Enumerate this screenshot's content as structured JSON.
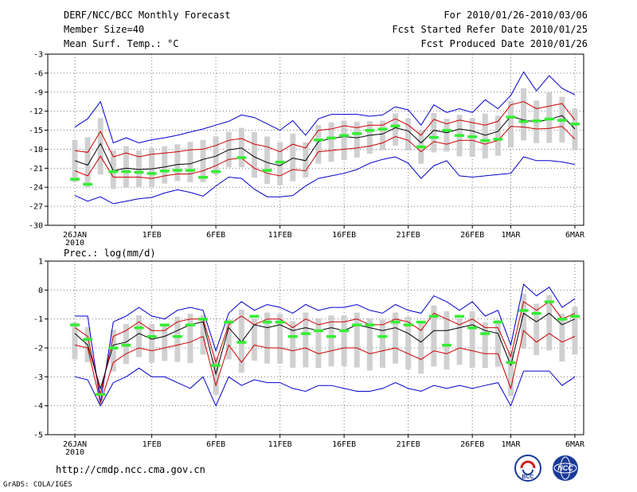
{
  "header": {
    "title": "DERF/NCC/BCC Monthly Forecast",
    "member_size": "Member Size=40",
    "variable": "Mean Surf. Temp.: °C",
    "period": "For 2010/01/26-2010/03/06",
    "fcst_started": "Fcst Started Refer Date 2010/01/25",
    "fcst_produced": "Fcst Produced Date 2010/01/26"
  },
  "footer": {
    "url": "http://cmdp.ncc.cma.gov.cn",
    "grads": "GrADS: COLA/IGES",
    "logo_left_text": "BCC",
    "logo_right_text": "NCC"
  },
  "colors": {
    "ensemble_range": "#0000cc",
    "spread": "#cc0000",
    "mean": "#000000",
    "observed": "#33ee33",
    "box": "#d0d0d0"
  },
  "chart_data": [
    {
      "type": "line",
      "title": "Mean Surf. Temp.: °C",
      "x_ticks": [
        {
          "day": 0,
          "label": "26JAN"
        },
        {
          "day": 6,
          "label": "1FEB"
        },
        {
          "day": 11,
          "label": "6FEB"
        },
        {
          "day": 16,
          "label": "11FEB"
        },
        {
          "day": 21,
          "label": "16FEB"
        },
        {
          "day": 26,
          "label": "21FEB"
        },
        {
          "day": 31,
          "label": "26FEB"
        },
        {
          "day": 34,
          "label": "1MAR"
        },
        {
          "day": 39,
          "label": "6MAR"
        }
      ],
      "x_sublabel": "2010",
      "ylim": [
        -30,
        -3
      ],
      "yticks": [
        -3,
        -6,
        -9,
        -12,
        -15,
        -18,
        -21,
        -24,
        -27,
        -30
      ],
      "series": {
        "max": [
          -14.5,
          -13.2,
          -10.5,
          -17,
          -16.2,
          -17,
          -16.5,
          -16.2,
          -15.8,
          -15.3,
          -14.8,
          -14.2,
          -13.6,
          -12.6,
          -13,
          -14,
          -15,
          -13.5,
          -15.8,
          -13.2,
          -12.5,
          -12.5,
          -12.5,
          -12.8,
          -12.6,
          -11.3,
          -11.8,
          -14.2,
          -11,
          -12.2,
          -11.6,
          -12.2,
          -10.2,
          -11.6,
          -9.5,
          -5.8,
          -8.8,
          -6.4,
          -8.4,
          -9.4
        ],
        "upper": [
          -18.2,
          -18.5,
          -15.2,
          -19.2,
          -18.6,
          -19.2,
          -18.8,
          -18.6,
          -18.4,
          -18.1,
          -18.0,
          -17.4,
          -16.6,
          -16.3,
          -17.2,
          -17.6,
          -18.4,
          -17.2,
          -17.8,
          -15.0,
          -14.8,
          -14.3,
          -14.6,
          -14.2,
          -14.2,
          -13.2,
          -14.2,
          -15.8,
          -13.3,
          -14.0,
          -13.4,
          -13.8,
          -14.2,
          -13.6,
          -11.0,
          -10.5,
          -11.6,
          -11.2,
          -10.8,
          -13.4
        ],
        "mean": [
          -19.8,
          -20.5,
          -17.1,
          -21.4,
          -21.0,
          -21.2,
          -21.1,
          -20.8,
          -20.4,
          -20.3,
          -19.6,
          -19.1,
          -18.1,
          -17.8,
          -19.2,
          -20.1,
          -20.6,
          -19.4,
          -19.8,
          -16.8,
          -16.3,
          -16.0,
          -16.2,
          -15.8,
          -15.6,
          -14.6,
          -15.1,
          -17.0,
          -15.0,
          -15.4,
          -14.8,
          -15.1,
          -15.8,
          -15.2,
          -12.8,
          -13.4,
          -13.7,
          -13.3,
          -12.7,
          -14.8
        ],
        "lower": [
          -21.4,
          -22.2,
          -19.1,
          -22.4,
          -22.4,
          -22.4,
          -22.6,
          -22.2,
          -21.9,
          -21.9,
          -21.4,
          -20.6,
          -19.6,
          -19.4,
          -21.0,
          -21.8,
          -22.2,
          -21.2,
          -21.4,
          -18.4,
          -18.2,
          -18.0,
          -17.8,
          -17.5,
          -17.0,
          -16.0,
          -16.6,
          -18.4,
          -16.8,
          -17.2,
          -16.6,
          -16.6,
          -17.2,
          -16.6,
          -14.4,
          -14.5,
          -14.8,
          -14.7,
          -14.4,
          -16.4
        ],
        "min": [
          -25.3,
          -26.2,
          -25.5,
          -26.6,
          -26.2,
          -25.8,
          -25.6,
          -24.9,
          -24.4,
          -24.8,
          -25.4,
          -23.8,
          -22.4,
          -22.6,
          -24.3,
          -25.5,
          -25.5,
          -25.3,
          -23.8,
          -22.6,
          -22.2,
          -21.8,
          -21.2,
          -20.2,
          -19.6,
          -19.2,
          -20.2,
          -22.6,
          -20.6,
          -19.8,
          -22.2,
          -22.4,
          -22.2,
          -22.0,
          -21.8,
          -19.2,
          -19.8,
          -19.8,
          -20.0,
          -20.4
        ],
        "observed": [
          -22.7,
          -23.5,
          null,
          -21.5,
          -21.5,
          -21.6,
          -21.8,
          -21.4,
          -21.3,
          -21.3,
          -22.4,
          -21.5,
          null,
          -19.3,
          null,
          -21.3,
          -20.0,
          null,
          null,
          -16.5,
          -16.2,
          -15.8,
          -15.5,
          -15.0,
          -14.8,
          -14.3,
          null,
          -17.6,
          -16.1,
          -15.0,
          -15.8,
          -16.0,
          -16.6,
          -16.4,
          -12.9,
          -13.6,
          -13.5,
          -13.2,
          -13.4,
          -14.0
        ]
      }
    },
    {
      "type": "line",
      "title": "Prec.: log(mm/d)",
      "x_ticks": [
        {
          "day": 0,
          "label": "26JAN"
        },
        {
          "day": 6,
          "label": "1FEB"
        },
        {
          "day": 11,
          "label": "6FEB"
        },
        {
          "day": 16,
          "label": "11FEB"
        },
        {
          "day": 21,
          "label": "16FEB"
        },
        {
          "day": 26,
          "label": "21FEB"
        },
        {
          "day": 31,
          "label": "26FEB"
        },
        {
          "day": 34,
          "label": "1MAR"
        },
        {
          "day": 39,
          "label": "6MAR"
        }
      ],
      "x_sublabel": "2010",
      "ylim": [
        -5,
        1
      ],
      "yticks": [
        1,
        0,
        -1,
        -2,
        -3,
        -4,
        -5
      ],
      "series": {
        "max": [
          -0.9,
          -0.9,
          -3.9,
          -1.1,
          -0.9,
          -0.6,
          -0.9,
          -1.0,
          -0.7,
          -0.6,
          -0.7,
          -2.1,
          -0.8,
          -0.4,
          -0.7,
          -0.5,
          -0.6,
          -0.8,
          -0.5,
          -0.7,
          -0.6,
          -0.6,
          -0.5,
          -0.7,
          -0.8,
          -0.5,
          -0.7,
          -0.8,
          -0.2,
          -0.4,
          -0.7,
          -0.4,
          -0.9,
          -0.7,
          -1.9,
          0.2,
          -0.2,
          0.1,
          -0.6,
          -0.3
        ],
        "upper": [
          -1.3,
          -1.6,
          -3.6,
          -1.6,
          -1.4,
          -1.1,
          -1.4,
          -1.4,
          -1.1,
          -1.0,
          -1.0,
          -2.5,
          -1.2,
          -0.9,
          -1.2,
          -1.0,
          -1.0,
          -1.3,
          -1.0,
          -1.2,
          -1.1,
          -1.1,
          -1.0,
          -1.2,
          -1.2,
          -1.0,
          -1.1,
          -1.4,
          -0.8,
          -1.0,
          -1.2,
          -1.0,
          -1.3,
          -1.3,
          -2.3,
          -0.4,
          -0.7,
          -0.4,
          -1.0,
          -0.8
        ],
        "mean": [
          -1.5,
          -1.9,
          -3.4,
          -1.9,
          -1.8,
          -1.5,
          -1.7,
          -1.6,
          -1.4,
          -1.2,
          -1.1,
          -2.9,
          -1.3,
          -1.8,
          -1.2,
          -1.3,
          -1.2,
          -1.4,
          -1.3,
          -1.4,
          -1.3,
          -1.4,
          -1.2,
          -1.3,
          -1.4,
          -1.3,
          -1.5,
          -1.8,
          -1.4,
          -1.4,
          -1.3,
          -1.2,
          -1.4,
          -1.5,
          -2.6,
          -0.8,
          -1.1,
          -0.8,
          -1.2,
          -1.0
        ],
        "lower": [
          -1.9,
          -2.0,
          -3.9,
          -2.5,
          -2.2,
          -2.0,
          -2.1,
          -2.0,
          -1.9,
          -1.8,
          -1.6,
          -3.3,
          -1.9,
          -2.5,
          -1.9,
          -2.0,
          -2.0,
          -2.1,
          -2.0,
          -2.2,
          -2.1,
          -2.0,
          -2.0,
          -2.2,
          -2.1,
          -2.0,
          -2.2,
          -2.4,
          -2.1,
          -2.2,
          -2.0,
          -2.1,
          -2.2,
          -2.2,
          -3.4,
          -1.4,
          -1.8,
          -1.5,
          -1.8,
          -1.6
        ],
        "min": [
          -3.0,
          -3.1,
          -4.0,
          -3.2,
          -3.0,
          -2.7,
          -3.0,
          -3.0,
          -3.2,
          -3.4,
          -3.0,
          -4.0,
          -3.0,
          -3.3,
          -3.1,
          -3.2,
          -3.2,
          -3.4,
          -3.5,
          -3.3,
          -3.3,
          -3.4,
          -3.5,
          -3.5,
          -3.4,
          -3.2,
          -3.4,
          -3.5,
          -3.3,
          -3.4,
          -3.3,
          -3.4,
          -3.3,
          -3.2,
          -4.0,
          -2.8,
          -2.8,
          -2.8,
          -3.3,
          -3.0
        ],
        "observed": [
          -1.2,
          -1.7,
          -3.6,
          -2.0,
          -1.9,
          -1.3,
          -1.6,
          -1.2,
          -1.6,
          -1.2,
          -1.0,
          -2.6,
          -1.1,
          -1.8,
          -0.9,
          -1.1,
          -1.1,
          -1.6,
          -1.5,
          -1.4,
          -1.6,
          -1.4,
          -1.2,
          -1.2,
          -1.6,
          -1.1,
          -1.2,
          -1.1,
          -0.9,
          -1.9,
          -0.9,
          -1.3,
          -1.5,
          -1.1,
          -2.5,
          -0.7,
          -0.8,
          -0.4,
          -1.0,
          -0.9
        ]
      }
    }
  ]
}
